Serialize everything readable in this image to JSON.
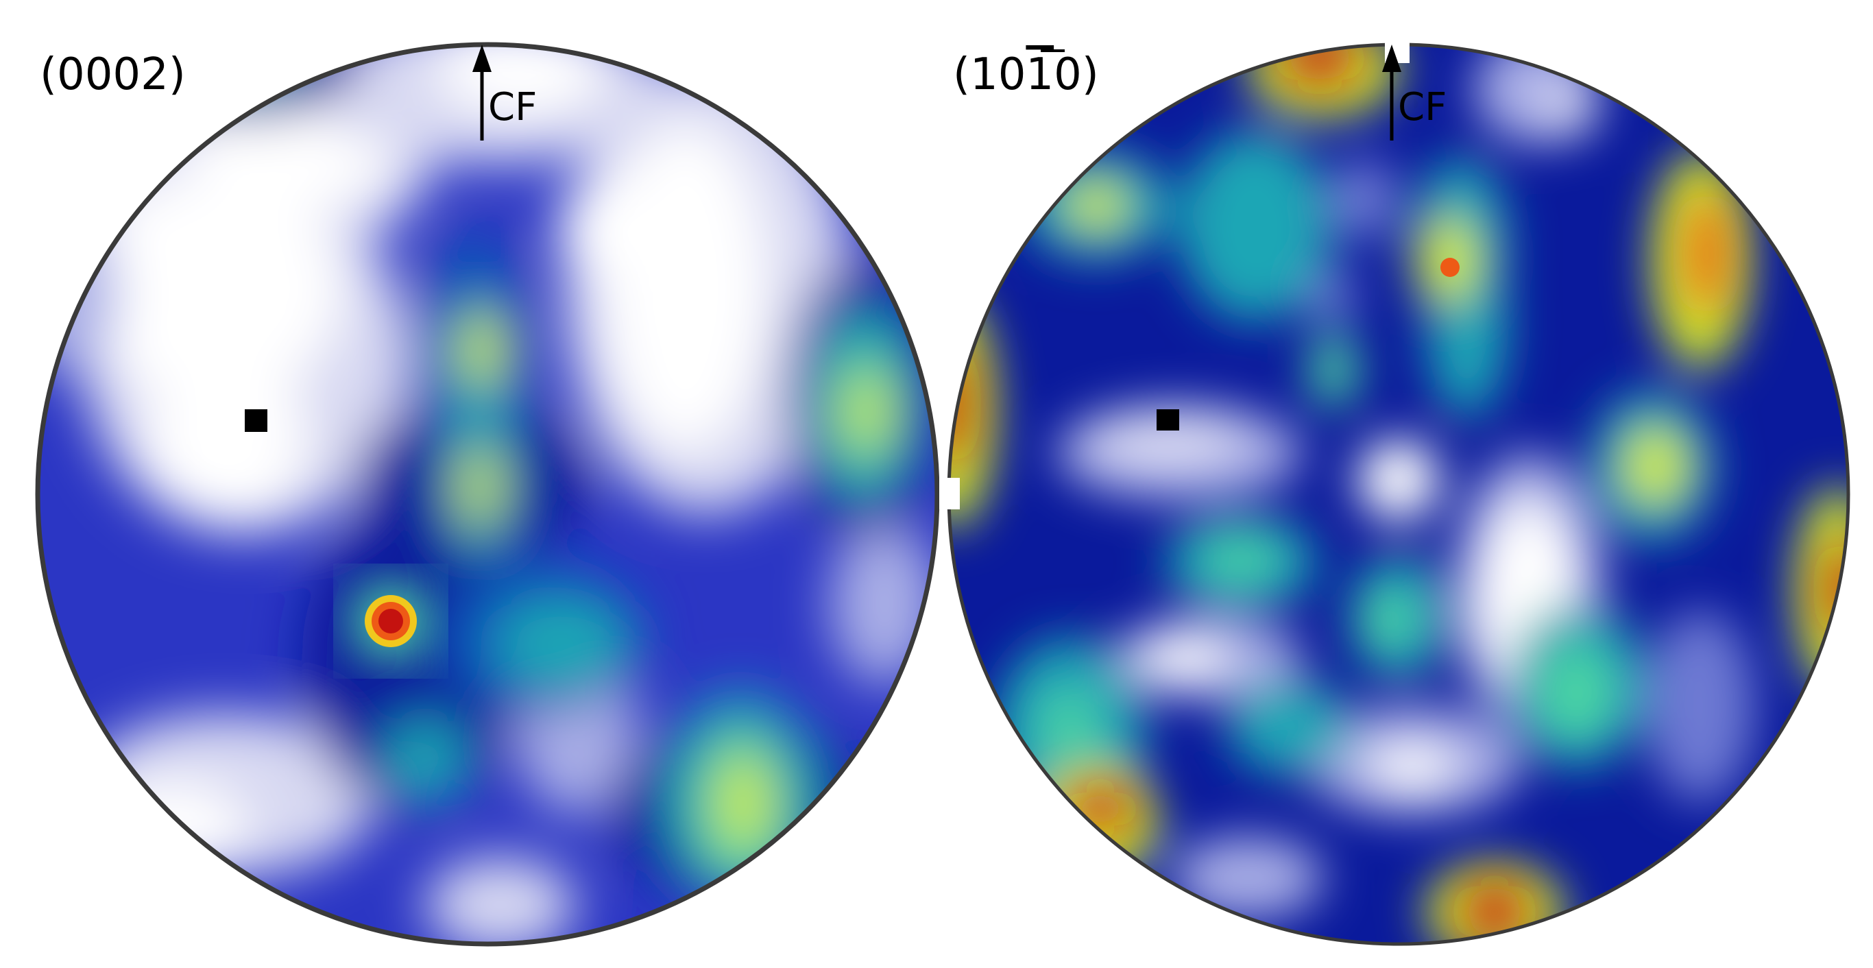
{
  "figure": {
    "panels": [
      {
        "plane_label": "(0002)",
        "direction_label": "CF"
      },
      {
        "plane_label": "(10Ā0)",
        "plane_label_parts": [
          "(10",
          "1",
          "0)"
        ],
        "direction_label": "CF"
      }
    ],
    "colormap": [
      "#ffffff",
      "#d8d9f2",
      "#a9aee6",
      "#6d79d3",
      "#2b36c4",
      "#0a1a9c",
      "#0a4fb8",
      "#1ba6b5",
      "#4ed7a2",
      "#d6ee2c",
      "#f0c81e",
      "#ee5a16",
      "#c4120f"
    ]
  }
}
